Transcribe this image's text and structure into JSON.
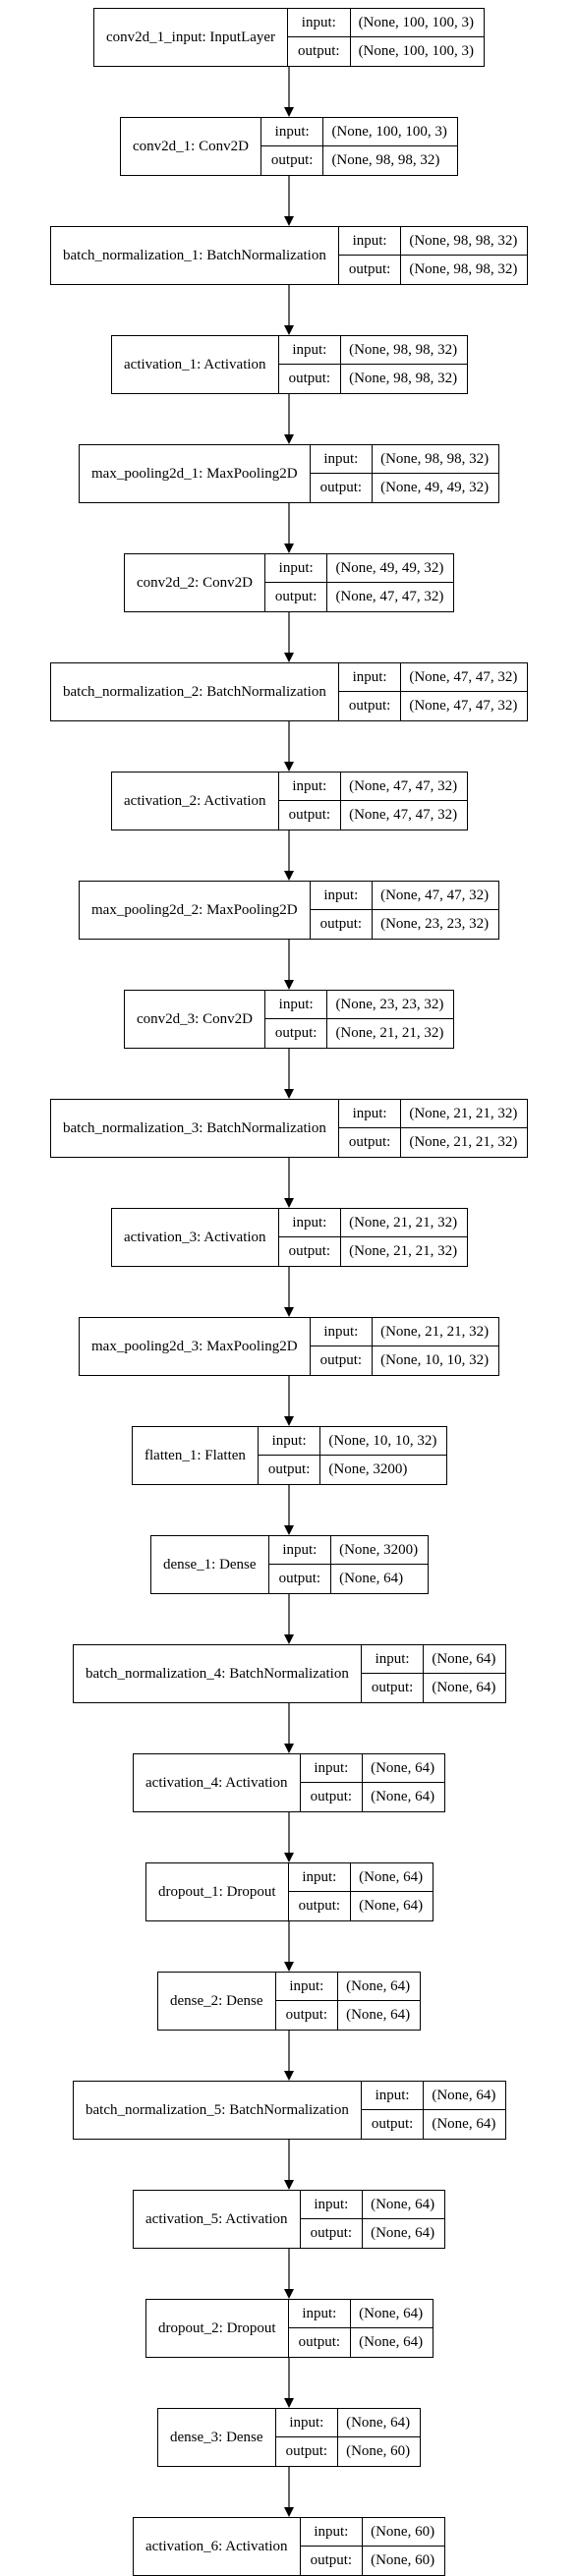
{
  "labels": {
    "input": "input:",
    "output": "output:"
  },
  "layers": [
    {
      "name": "conv2d_1_input: InputLayer",
      "input": "(None, 100, 100, 3)",
      "output": "(None, 100, 100, 3)"
    },
    {
      "name": "conv2d_1: Conv2D",
      "input": "(None, 100, 100, 3)",
      "output": "(None, 98, 98, 32)"
    },
    {
      "name": "batch_normalization_1: BatchNormalization",
      "input": "(None, 98, 98, 32)",
      "output": "(None, 98, 98, 32)"
    },
    {
      "name": "activation_1: Activation",
      "input": "(None, 98, 98, 32)",
      "output": "(None, 98, 98, 32)"
    },
    {
      "name": "max_pooling2d_1: MaxPooling2D",
      "input": "(None, 98, 98, 32)",
      "output": "(None, 49, 49, 32)"
    },
    {
      "name": "conv2d_2: Conv2D",
      "input": "(None, 49, 49, 32)",
      "output": "(None, 47, 47, 32)"
    },
    {
      "name": "batch_normalization_2: BatchNormalization",
      "input": "(None, 47, 47, 32)",
      "output": "(None, 47, 47, 32)"
    },
    {
      "name": "activation_2: Activation",
      "input": "(None, 47, 47, 32)",
      "output": "(None, 47, 47, 32)"
    },
    {
      "name": "max_pooling2d_2: MaxPooling2D",
      "input": "(None, 47, 47, 32)",
      "output": "(None, 23, 23, 32)"
    },
    {
      "name": "conv2d_3: Conv2D",
      "input": "(None, 23, 23, 32)",
      "output": "(None, 21, 21, 32)"
    },
    {
      "name": "batch_normalization_3: BatchNormalization",
      "input": "(None, 21, 21, 32)",
      "output": "(None, 21, 21, 32)"
    },
    {
      "name": "activation_3: Activation",
      "input": "(None, 21, 21, 32)",
      "output": "(None, 21, 21, 32)"
    },
    {
      "name": "max_pooling2d_3: MaxPooling2D",
      "input": "(None, 21, 21, 32)",
      "output": "(None, 10, 10, 32)"
    },
    {
      "name": "flatten_1: Flatten",
      "input": "(None, 10, 10, 32)",
      "output": "(None, 3200)"
    },
    {
      "name": "dense_1: Dense",
      "input": "(None, 3200)",
      "output": "(None, 64)"
    },
    {
      "name": "batch_normalization_4: BatchNormalization",
      "input": "(None, 64)",
      "output": "(None, 64)"
    },
    {
      "name": "activation_4: Activation",
      "input": "(None, 64)",
      "output": "(None, 64)"
    },
    {
      "name": "dropout_1: Dropout",
      "input": "(None, 64)",
      "output": "(None, 64)"
    },
    {
      "name": "dense_2: Dense",
      "input": "(None, 64)",
      "output": "(None, 64)"
    },
    {
      "name": "batch_normalization_5: BatchNormalization",
      "input": "(None, 64)",
      "output": "(None, 64)"
    },
    {
      "name": "activation_5: Activation",
      "input": "(None, 64)",
      "output": "(None, 64)"
    },
    {
      "name": "dropout_2: Dropout",
      "input": "(None, 64)",
      "output": "(None, 64)"
    },
    {
      "name": "dense_3: Dense",
      "input": "(None, 64)",
      "output": "(None, 60)"
    },
    {
      "name": "activation_6: Activation",
      "input": "(None, 60)",
      "output": "(None, 60)"
    }
  ]
}
